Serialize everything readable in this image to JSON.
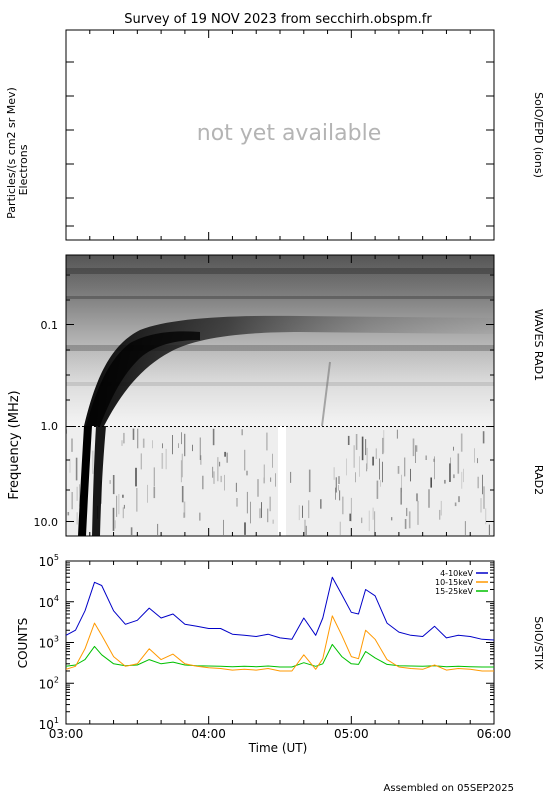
{
  "title": "Survey of 19 NOV 2023 from secchirh.obspm.fr",
  "footer": "Assembled on 05SEP2025",
  "panels": {
    "epd": {
      "ylabel_line1": "Particles/(s cm2 sr Mev)",
      "ylabel_line2": "Electrons",
      "right_label": "SolO/EPD (ions)",
      "message": "not yet available"
    },
    "waves": {
      "ylabel": "Frequency (MHz)",
      "right_label_rad1": "WAVES RAD1",
      "right_label_rad2": "RAD2",
      "yticks": [
        "0.1",
        "1.0",
        "10.0"
      ]
    },
    "stix": {
      "ylabel": "COUNTS",
      "right_label": "SolO/STIX",
      "xlabel": "Time (UT)"
    }
  },
  "chart_data": {
    "type": "line",
    "x_unit": "UT",
    "x_range": [
      "03:00",
      "06:00"
    ],
    "xticks": [
      "03:00",
      "04:00",
      "05:00",
      "06:00"
    ],
    "yscale": "log",
    "ylim": [
      10,
      100000
    ],
    "ytick_labels": [
      "10^1",
      "10^2",
      "10^3",
      "10^4",
      "10^5"
    ],
    "legend_position": "top-right",
    "series": [
      {
        "name": "4-10keV",
        "color": "#0000c8",
        "x": [
          "03:00",
          "03:04",
          "03:08",
          "03:12",
          "03:15",
          "03:20",
          "03:25",
          "03:30",
          "03:35",
          "03:40",
          "03:45",
          "03:50",
          "03:55",
          "04:00",
          "04:05",
          "04:10",
          "04:15",
          "04:20",
          "04:25",
          "04:30",
          "04:35",
          "04:40",
          "04:45",
          "04:48",
          "04:52",
          "04:56",
          "05:00",
          "05:03",
          "05:06",
          "05:10",
          "05:15",
          "05:20",
          "05:25",
          "05:30",
          "05:35",
          "05:40",
          "05:45",
          "05:50",
          "05:55",
          "06:00"
        ],
        "values": [
          1500,
          2000,
          6000,
          30000,
          25000,
          6000,
          2800,
          3500,
          7000,
          4000,
          5000,
          2800,
          2500,
          2200,
          2200,
          1600,
          1500,
          1400,
          1600,
          1300,
          1200,
          4000,
          1500,
          4000,
          40000,
          15000,
          5500,
          5000,
          20000,
          14000,
          3000,
          1800,
          1500,
          1400,
          2500,
          1300,
          1500,
          1400,
          1200,
          1150
        ]
      },
      {
        "name": "10-15keV",
        "color": "#ff9900",
        "x": [
          "03:00",
          "03:04",
          "03:08",
          "03:12",
          "03:15",
          "03:20",
          "03:25",
          "03:30",
          "03:35",
          "03:40",
          "03:45",
          "03:50",
          "03:55",
          "04:00",
          "04:05",
          "04:10",
          "04:15",
          "04:20",
          "04:25",
          "04:30",
          "04:35",
          "04:40",
          "04:45",
          "04:48",
          "04:52",
          "04:56",
          "05:00",
          "05:03",
          "05:06",
          "05:10",
          "05:15",
          "05:20",
          "05:25",
          "05:30",
          "05:35",
          "05:40",
          "05:45",
          "05:50",
          "05:55",
          "06:00"
        ],
        "values": [
          220,
          260,
          700,
          3000,
          1500,
          450,
          260,
          300,
          700,
          380,
          520,
          300,
          260,
          240,
          230,
          210,
          220,
          210,
          230,
          200,
          200,
          500,
          220,
          400,
          4500,
          1500,
          450,
          400,
          2000,
          1200,
          380,
          250,
          230,
          220,
          280,
          210,
          230,
          220,
          200,
          200
        ]
      },
      {
        "name": "15-25keV",
        "color": "#00c000",
        "x": [
          "03:00",
          "03:04",
          "03:08",
          "03:12",
          "03:15",
          "03:20",
          "03:25",
          "03:30",
          "03:35",
          "03:40",
          "03:45",
          "03:50",
          "03:55",
          "04:00",
          "04:05",
          "04:10",
          "04:15",
          "04:20",
          "04:25",
          "04:30",
          "04:35",
          "04:40",
          "04:45",
          "04:48",
          "04:52",
          "04:56",
          "05:00",
          "05:03",
          "05:06",
          "05:10",
          "05:15",
          "05:20",
          "05:25",
          "05:30",
          "05:35",
          "05:40",
          "05:45",
          "05:50",
          "05:55",
          "06:00"
        ],
        "values": [
          260,
          280,
          380,
          800,
          500,
          300,
          270,
          280,
          380,
          300,
          330,
          280,
          270,
          265,
          260,
          255,
          260,
          255,
          265,
          250,
          250,
          320,
          260,
          300,
          900,
          450,
          300,
          290,
          600,
          420,
          290,
          270,
          265,
          260,
          270,
          255,
          260,
          255,
          250,
          250
        ]
      }
    ]
  }
}
